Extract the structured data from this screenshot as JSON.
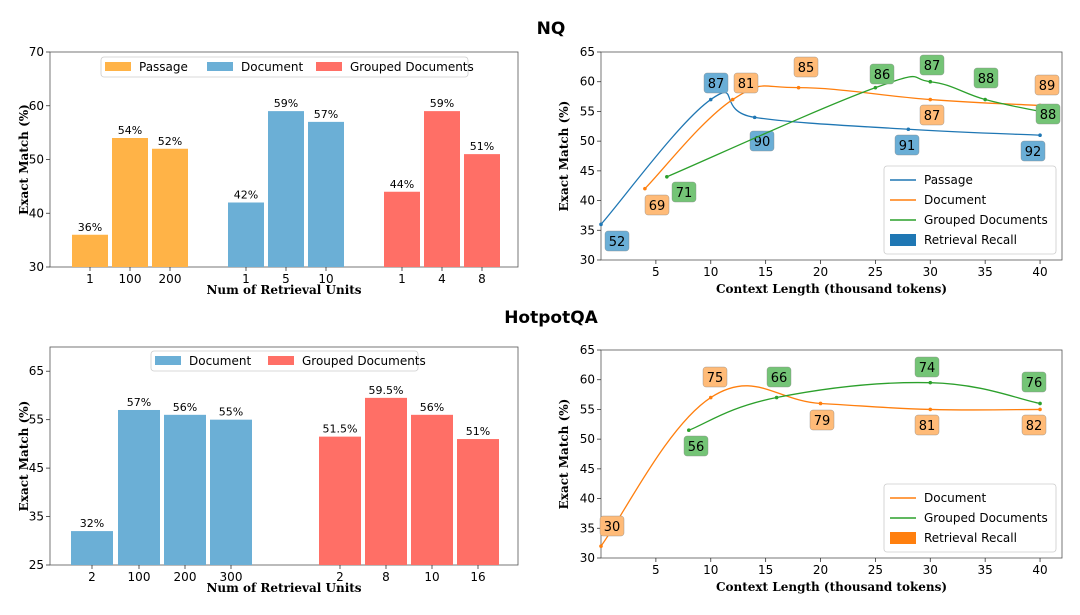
{
  "section_titles": {
    "top": "NQ",
    "bottom": "HotpotQA"
  },
  "colors": {
    "passage": "#ffb347",
    "document": "#6bafd6",
    "grouped": "#ff6f66",
    "line_passage": "#1f77b4",
    "line_document": "#ff7f0e",
    "line_grouped": "#2ca02c",
    "badge_passage": "#6aaed6",
    "badge_document": "#ffbb78",
    "badge_grouped": "#74c476"
  },
  "chart_data": [
    {
      "id": "nq_bar",
      "type": "bar",
      "title": "NQ",
      "xlabel": "Num of Retrieval Units",
      "ylabel": "Exact Match (%)",
      "ylim": [
        30,
        70
      ],
      "yticks": [
        30,
        40,
        50,
        60,
        70
      ],
      "legend": "top-center",
      "groups": [
        {
          "name": "Passage",
          "color": "#ffb347",
          "categories": [
            "1",
            "100",
            "200"
          ],
          "values": [
            36,
            54,
            52
          ],
          "labels": [
            "36%",
            "54%",
            "52%"
          ]
        },
        {
          "name": "Document",
          "color": "#6bafd6",
          "categories": [
            "1",
            "5",
            "10"
          ],
          "values": [
            42,
            59,
            57
          ],
          "labels": [
            "42%",
            "59%",
            "57%"
          ]
        },
        {
          "name": "Grouped Documents",
          "color": "#ff6f66",
          "categories": [
            "1",
            "4",
            "8"
          ],
          "values": [
            44,
            59,
            51
          ],
          "labels": [
            "44%",
            "59%",
            "51%"
          ]
        }
      ]
    },
    {
      "id": "nq_line",
      "type": "line",
      "xlabel": "Context Length (thousand tokens)",
      "ylabel": "Exact Match (%)",
      "xlim": [
        0,
        42
      ],
      "ylim": [
        30,
        65
      ],
      "xticks": [
        5,
        10,
        15,
        20,
        25,
        30,
        35,
        40
      ],
      "yticks": [
        30,
        35,
        40,
        45,
        50,
        55,
        60,
        65
      ],
      "legend": "bottom-right",
      "legend_extra": "Retrieval Recall",
      "series": [
        {
          "name": "Passage",
          "color": "#1f77b4",
          "badge": "#6aaed6",
          "x": [
            0,
            10,
            14,
            28,
            40
          ],
          "y": [
            36,
            57,
            54,
            52,
            51
          ],
          "recall": [
            "52",
            "87",
            "90",
            "91",
            "92"
          ]
        },
        {
          "name": "Document",
          "color": "#ff7f0e",
          "badge": "#ffbb78",
          "x": [
            4,
            12,
            18,
            30,
            40
          ],
          "y": [
            42,
            57,
            59,
            57,
            56
          ],
          "recall": [
            "69",
            "81",
            "85",
            "87",
            "89"
          ]
        },
        {
          "name": "Grouped Documents",
          "color": "#2ca02c",
          "badge": "#74c476",
          "x": [
            6,
            25,
            30,
            35,
            40
          ],
          "y": [
            44,
            59,
            60,
            57,
            55
          ],
          "recall": [
            "71",
            "86",
            "87",
            "88",
            "88"
          ]
        }
      ]
    },
    {
      "id": "hotpot_bar",
      "type": "bar",
      "title": "HotpotQA",
      "xlabel": "Num of Retrieval Units",
      "ylabel": "Exact Match (%)",
      "ylim": [
        25,
        70
      ],
      "yticks": [
        25,
        35,
        45,
        55,
        65
      ],
      "legend": "top-center",
      "groups": [
        {
          "name": "Document",
          "color": "#6bafd6",
          "categories": [
            "2",
            "100",
            "200",
            "300"
          ],
          "values": [
            32,
            57,
            56,
            55
          ],
          "labels": [
            "32%",
            "57%",
            "56%",
            "55%"
          ]
        },
        {
          "name": "Grouped Documents",
          "color": "#ff6f66",
          "categories": [
            "2",
            "8",
            "10",
            "16"
          ],
          "values": [
            51.5,
            59.5,
            56,
            51
          ],
          "labels": [
            "51.5%",
            "59.5%",
            "56%",
            "51%"
          ]
        }
      ]
    },
    {
      "id": "hotpot_line",
      "type": "line",
      "xlabel": "Context Length (thousand tokens)",
      "ylabel": "Exact Match (%)",
      "xlim": [
        0,
        42
      ],
      "ylim": [
        30,
        65
      ],
      "xticks": [
        5,
        10,
        15,
        20,
        25,
        30,
        35,
        40
      ],
      "yticks": [
        30,
        35,
        40,
        45,
        50,
        55,
        60,
        65
      ],
      "legend": "bottom-right",
      "legend_extra": "Retrieval Recall",
      "series": [
        {
          "name": "Document",
          "color": "#ff7f0e",
          "badge": "#ffbb78",
          "x": [
            0,
            10,
            20,
            30,
            40
          ],
          "y": [
            32,
            57,
            56,
            55,
            55
          ],
          "recall": [
            "30",
            "75",
            "79",
            "81",
            "82"
          ]
        },
        {
          "name": "Grouped Documents",
          "color": "#2ca02c",
          "badge": "#74c476",
          "x": [
            8,
            16,
            30,
            40
          ],
          "y": [
            51.5,
            57,
            59.5,
            56
          ],
          "recall": [
            "56",
            "66",
            "74",
            "76"
          ]
        }
      ]
    }
  ]
}
